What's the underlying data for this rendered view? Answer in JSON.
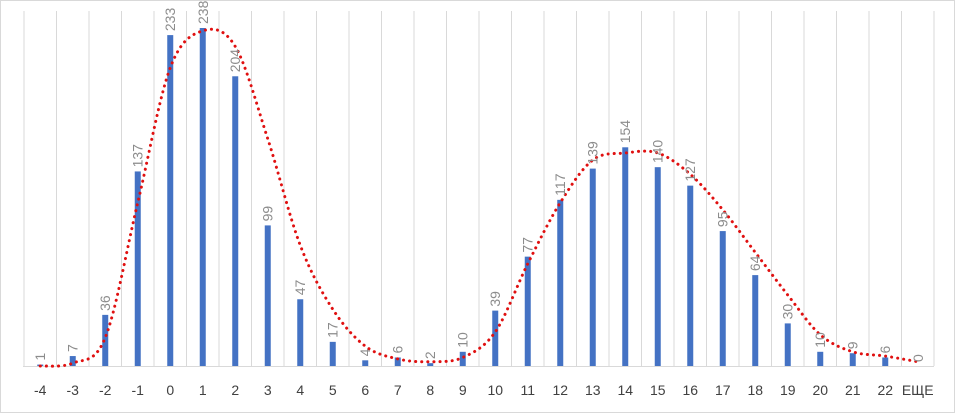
{
  "chart_data": {
    "type": "bar",
    "categories": [
      "-4",
      "-3",
      "-2",
      "-1",
      "0",
      "1",
      "2",
      "3",
      "4",
      "5",
      "6",
      "7",
      "8",
      "9",
      "10",
      "11",
      "12",
      "13",
      "14",
      "15",
      "16",
      "17",
      "18",
      "19",
      "20",
      "21",
      "22",
      "ЕЩЕ"
    ],
    "series": [
      {
        "values": [
          1,
          7,
          36,
          137,
          233,
          238,
          204,
          99,
          47,
          17,
          4,
          6,
          2,
          10,
          39,
          77,
          117,
          139,
          154,
          140,
          127,
          95,
          64,
          30,
          10,
          9,
          6,
          0
        ]
      }
    ],
    "trendline": {
      "type": "moving-average-dotted",
      "values": [
        0,
        2,
        20,
        115,
        210,
        236,
        225,
        160,
        85,
        40,
        14,
        5,
        3,
        6,
        24,
        72,
        115,
        145,
        150,
        150,
        135,
        110,
        80,
        50,
        22,
        10,
        7,
        3
      ]
    },
    "colors": {
      "bar": "#4472c4",
      "trendline": "#e01010",
      "grid": "#d9d9d9",
      "data_label": "#8c8c8c",
      "tick_label": "#404040"
    },
    "grid": true,
    "legend": "none",
    "ylim": [
      0,
      245
    ]
  }
}
